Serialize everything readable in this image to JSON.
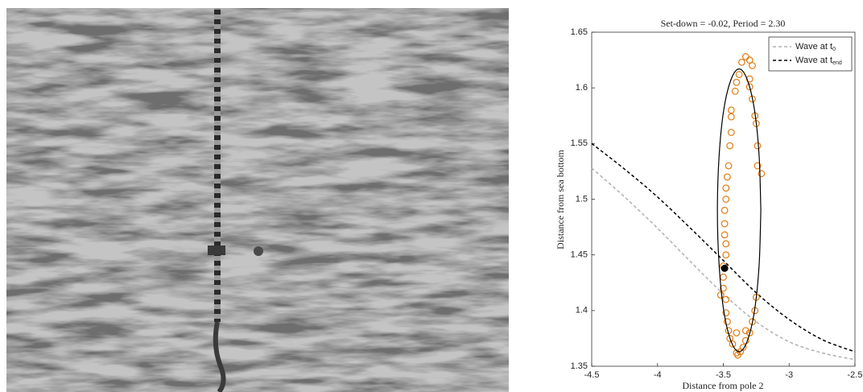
{
  "chart_data": {
    "type": "scatter",
    "title": "Set-down = -0.02, Period = 2.30",
    "xlabel": "Distance from pole 2",
    "ylabel": "Distance from sea bottom",
    "xlim": [
      -4.5,
      -2.5
    ],
    "ylim": [
      1.35,
      1.65
    ],
    "xticks": [
      -4.5,
      -4,
      -3.5,
      -3,
      -2.5
    ],
    "yticks": [
      1.35,
      1.4,
      1.45,
      1.5,
      1.55,
      1.6,
      1.65
    ],
    "grid": false,
    "legend": "upper right",
    "series": [
      {
        "name": "Wave at t",
        "name_subscript": "0",
        "style": "dashed",
        "color": "#b0b0b0",
        "x": [
          -4.5,
          -4.25,
          -4,
          -3.75,
          -3.5,
          -3.25,
          -3,
          -2.75,
          -2.5
        ],
        "values": [
          1.528,
          1.502,
          1.474,
          1.444,
          1.415,
          1.39,
          1.372,
          1.362,
          1.356
        ]
      },
      {
        "name": "Wave at t",
        "name_subscript": "end",
        "style": "dashed",
        "color": "#000000",
        "x": [
          -4.5,
          -4.25,
          -4,
          -3.75,
          -3.5,
          -3.25,
          -3,
          -2.75,
          -2.5
        ],
        "values": [
          1.55,
          1.527,
          1.502,
          1.474,
          1.445,
          1.416,
          1.392,
          1.374,
          1.363
        ]
      },
      {
        "style": "circles",
        "color": "#e07b10",
        "x": [
          -3.33,
          -3.3,
          -3.36,
          -3.28,
          -3.38,
          -3.4,
          -3.41,
          -3.44,
          -3.44,
          -3.44,
          -3.45,
          -3.46,
          -3.47,
          -3.48,
          -3.48,
          -3.49,
          -3.49,
          -3.49,
          -3.48,
          -3.48,
          -3.5,
          -3.5,
          -3.5,
          -3.52,
          -3.48,
          -3.48,
          -3.47,
          -3.46,
          -3.45,
          -3.43,
          -3.4,
          -3.39,
          -3.37,
          -3.35,
          -3.33,
          -3.3,
          -3.28,
          -3.26,
          -3.25,
          -3.33,
          -3.4,
          -3.28,
          -3.26,
          -3.25,
          -3.24,
          -3.24,
          -3.21,
          -3.3,
          -3.3
        ],
        "values": [
          1.628,
          1.625,
          1.623,
          1.62,
          1.612,
          1.605,
          1.597,
          1.58,
          1.574,
          1.56,
          1.548,
          1.53,
          1.52,
          1.51,
          1.5,
          1.49,
          1.478,
          1.468,
          1.46,
          1.45,
          1.44,
          1.43,
          1.42,
          1.414,
          1.41,
          1.398,
          1.39,
          1.382,
          1.375,
          1.37,
          1.362,
          1.36,
          1.363,
          1.367,
          1.373,
          1.38,
          1.39,
          1.4,
          1.412,
          1.382,
          1.38,
          1.59,
          1.575,
          1.568,
          1.548,
          1.53,
          1.523,
          1.601,
          1.608
        ]
      },
      {
        "style": "line",
        "color": "#000000",
        "x": [
          -3.215,
          -3.228,
          -3.263,
          -3.317,
          -3.38,
          -3.443,
          -3.497,
          -3.532,
          -3.545,
          -3.532,
          -3.497,
          -3.443,
          -3.38,
          -3.317,
          -3.263,
          -3.228,
          -3.215
        ],
        "values": [
          1.49,
          1.539,
          1.58,
          1.607,
          1.617,
          1.607,
          1.58,
          1.539,
          1.49,
          1.441,
          1.4,
          1.373,
          1.363,
          1.373,
          1.4,
          1.441,
          1.49
        ]
      },
      {
        "style": "dot",
        "color": "#000000",
        "x": [
          -3.49
        ],
        "values": [
          1.438
        ]
      }
    ]
  }
}
